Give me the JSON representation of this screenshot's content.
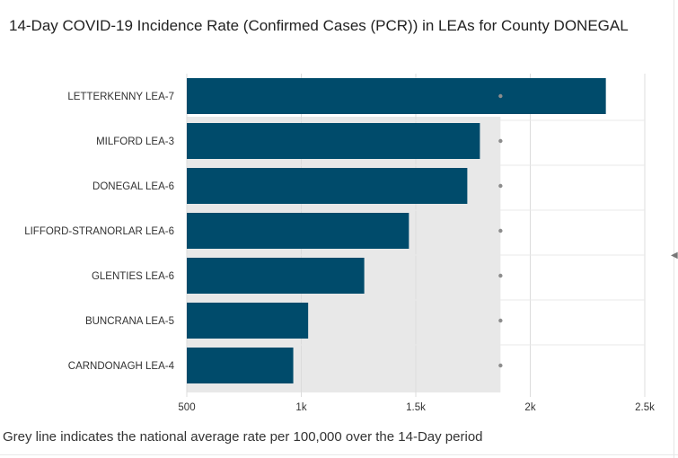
{
  "title": "14-Day COVID-19 Incidence Rate (Confirmed Cases (PCR)) in LEAs for County DONEGAL",
  "caption": "Grey line indicates the national average rate per 100,000 over the 14-Day period",
  "colors": {
    "bar": "#004b6b",
    "national_band": "#e8e8e8",
    "national_dot": "#8c8c8c",
    "grid": "#dcdcdc"
  },
  "chart_data": {
    "type": "bar",
    "orientation": "horizontal",
    "categories": [
      "LETTERKENNY LEA-7",
      "MILFORD LEA-3",
      "DONEGAL LEA-6",
      "LIFFORD-STRANORLAR LEA-6",
      "GLENTIES LEA-6",
      "BUNCRANA LEA-5",
      "CARNDONAGH LEA-4"
    ],
    "values": [
      2330,
      1780,
      1725,
      1470,
      1275,
      1030,
      965
    ],
    "national_average": 1870,
    "xlim": [
      500,
      2500
    ],
    "xticks": [
      500,
      1000,
      1500,
      2000,
      2500
    ],
    "xtick_labels": [
      "500",
      "1k",
      "1.5k",
      "2k",
      "2.5k"
    ],
    "grid": true
  }
}
